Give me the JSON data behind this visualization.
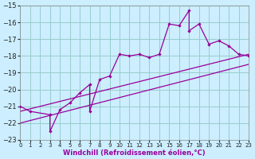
{
  "xlabel": "Windchill (Refroidissement éolien,°C)",
  "bg_color": "#cceeff",
  "line_color": "#990099",
  "grid_color": "#99cccc",
  "series1_x": [
    0,
    1,
    3,
    3,
    4,
    5,
    6,
    7,
    7,
    8,
    9,
    10,
    11,
    12,
    13,
    14,
    15,
    16,
    17,
    17,
    18,
    19,
    20,
    21,
    22,
    23
  ],
  "series1_y": [
    -21.0,
    -21.3,
    -21.5,
    -22.5,
    -21.2,
    -20.8,
    -20.2,
    -19.7,
    -21.3,
    -19.4,
    -19.2,
    -17.9,
    -18.0,
    -17.9,
    -18.1,
    -17.9,
    -16.1,
    -16.2,
    -15.3,
    -16.5,
    -16.1,
    -17.3,
    -17.1,
    -17.4,
    -17.9,
    -18.0
  ],
  "series2_x": [
    0,
    23
  ],
  "series2_y": [
    -21.3,
    -17.9
  ],
  "series3_x": [
    0,
    23
  ],
  "series3_y": [
    -22.0,
    -18.5
  ],
  "xlim": [
    0,
    23
  ],
  "ylim": [
    -23,
    -15
  ],
  "xticks": [
    0,
    1,
    2,
    3,
    4,
    5,
    6,
    7,
    8,
    9,
    10,
    11,
    12,
    13,
    14,
    15,
    16,
    17,
    18,
    19,
    20,
    21,
    22,
    23
  ],
  "yticks": [
    -23,
    -22,
    -21,
    -20,
    -19,
    -18,
    -17,
    -16,
    -15
  ]
}
